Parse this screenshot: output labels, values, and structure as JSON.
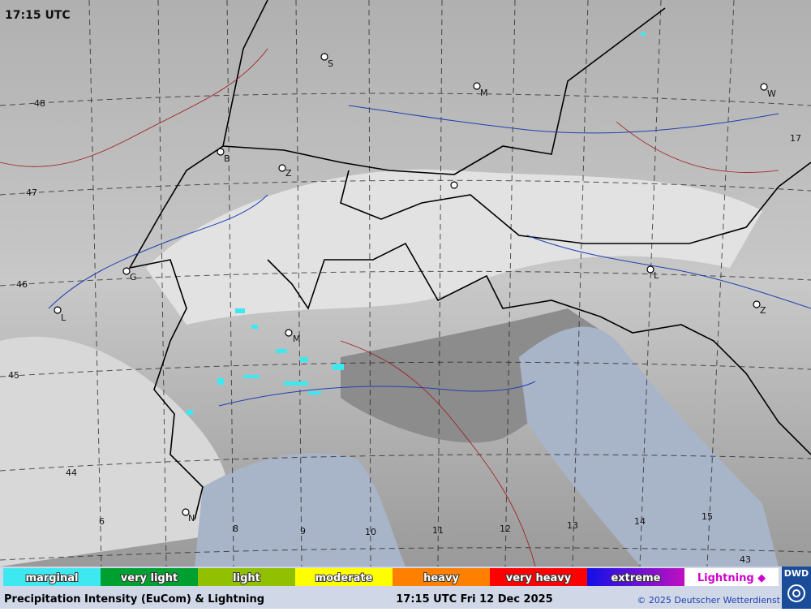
{
  "header": {
    "time": "17:15 UTC"
  },
  "latitudes": [
    "48",
    "47",
    "46",
    "45",
    "44",
    "43"
  ],
  "longitudes": [
    "6",
    "8",
    "9",
    "10",
    "11",
    "12",
    "13",
    "14",
    "15",
    "17"
  ],
  "cities": [
    "S",
    "M",
    "W",
    "B",
    "Z",
    "G",
    "L",
    "M",
    "L",
    "Z",
    "N"
  ],
  "legend": [
    {
      "label": "marginal",
      "color": "#3ee8f0"
    },
    {
      "label": "very light",
      "color": "#00a030"
    },
    {
      "label": "light",
      "color": "#90c000"
    },
    {
      "label": "moderate",
      "color": "#ffff00"
    },
    {
      "label": "heavy",
      "color": "#ff8000"
    },
    {
      "label": "very heavy",
      "color": "#ff0000"
    },
    {
      "label": "extreme",
      "color": "#1010e8"
    }
  ],
  "lightning": {
    "label": "Lightning ◆",
    "color": "#d000d0"
  },
  "logo": "DWD",
  "footer": {
    "title": "Precipitation Intensity (EuCom) & Lightning",
    "timestamp": "17:15 UTC Fri 12 Dec 2025",
    "copyright": "© 2025 Deutscher Wetterdienst"
  }
}
